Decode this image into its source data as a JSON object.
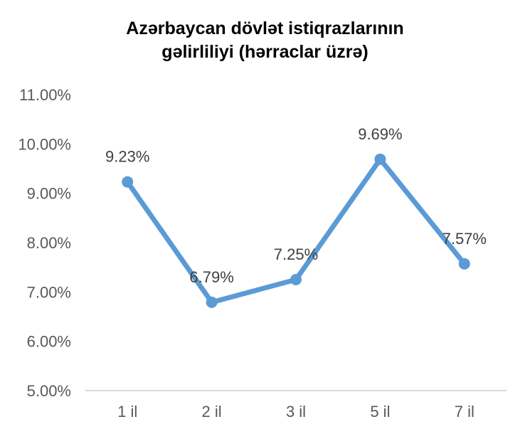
{
  "chart_data": {
    "type": "line",
    "title_line1": "Azərbaycan dövlət istiqrazlarının",
    "title_line2": "gəlirliliyi (hərraclar üzrə)",
    "categories": [
      "1 il",
      "2 il",
      "3 il",
      "5 il",
      "7 il"
    ],
    "values": [
      9.23,
      6.79,
      7.25,
      9.69,
      7.57
    ],
    "data_labels": [
      "9.23%",
      "6.79%",
      "7.25%",
      "9.69%",
      "7.57%"
    ],
    "y_ticks": [
      5,
      6,
      7,
      8,
      9,
      10,
      11
    ],
    "y_tick_labels": [
      "5.00%",
      "6.00%",
      "7.00%",
      "8.00%",
      "9.00%",
      "10.00%",
      "11.00%"
    ],
    "ylim": [
      5,
      11
    ],
    "xlabel": "",
    "ylabel": "",
    "grid": false,
    "legend": "none",
    "line_color": "#5B9BD5",
    "axis_color": "#D9D9D9"
  }
}
